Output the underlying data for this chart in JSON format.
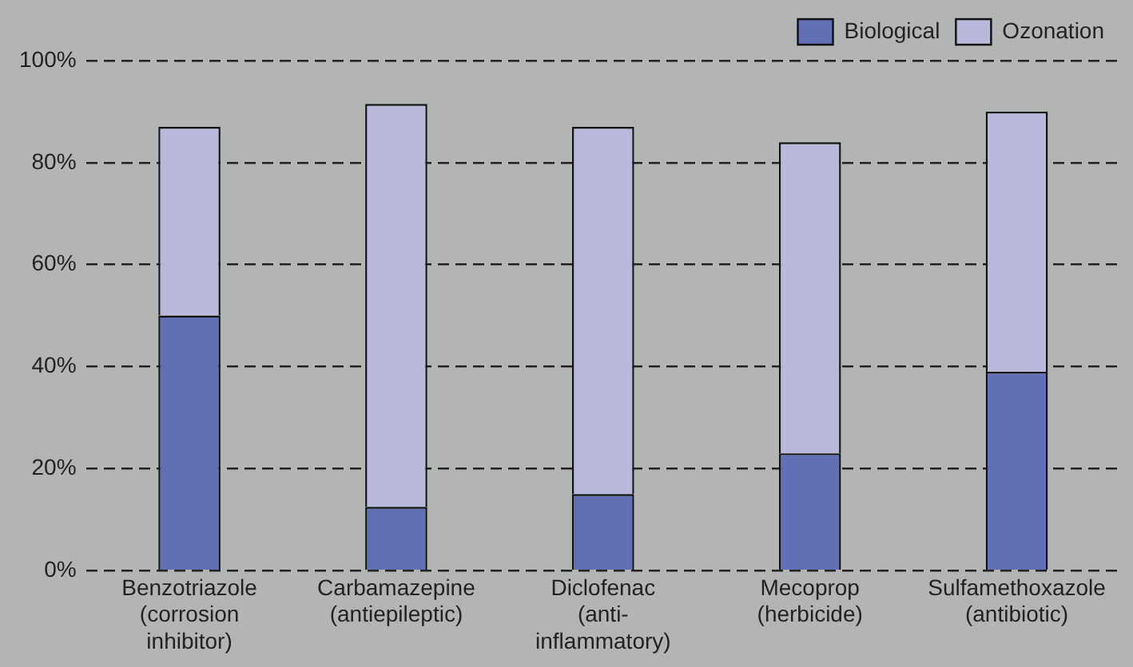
{
  "chart_data": {
    "type": "bar",
    "stacked": true,
    "categories": [
      "Benzotriazole\n(corrosion\ninhibitor)",
      "Carbamazepine\n(antiepileptic)",
      "Diclofenac\n(anti-\ninflammatory)",
      "Mecoprop\n(herbicide)",
      "Sulfamethoxazole\n(antibiotic)"
    ],
    "series": [
      {
        "name": "Biological",
        "color": "#6170b5",
        "values": [
          50,
          12.5,
          15,
          23,
          39
        ]
      },
      {
        "name": "Ozonation",
        "color": "#b8b8da",
        "values": [
          37,
          79,
          72,
          61,
          51
        ]
      }
    ],
    "ylim": [
      0,
      100
    ],
    "yticks": [
      {
        "value": 0,
        "label": "0%"
      },
      {
        "value": 20,
        "label": "20%"
      },
      {
        "value": 40,
        "label": "40%"
      },
      {
        "value": 60,
        "label": "60%"
      },
      {
        "value": 80,
        "label": "80%"
      },
      {
        "value": 100,
        "label": "100%"
      }
    ],
    "grid": "y",
    "legend": "top right"
  }
}
